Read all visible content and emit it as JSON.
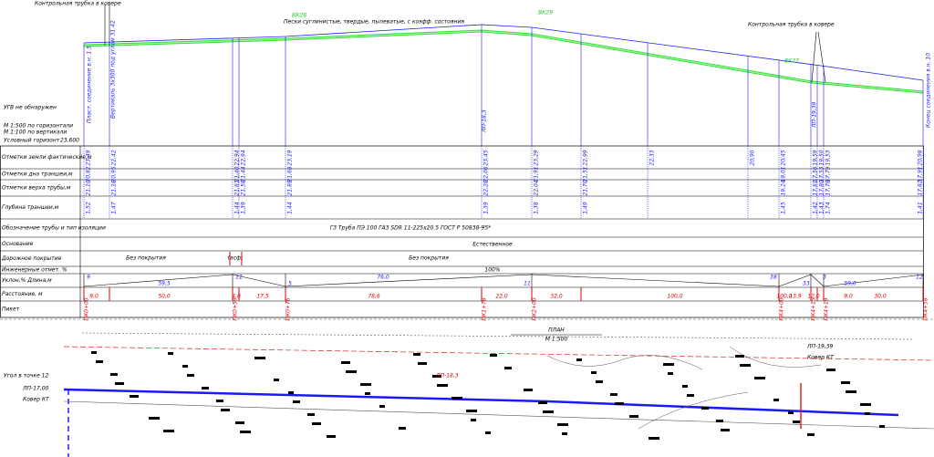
{
  "top_notes": {
    "control_left": "Контрольная трубка в ковере",
    "control_right": "Контрольная трубка в ковере",
    "soil": "Пески суглинистые, твердые, пылеватые, с коэфф. состояния",
    "wells": [
      "ВК28",
      "ВК29",
      "ВК27"
    ]
  },
  "side_notes": [
    "УГВ не обнаружен",
    "М 1:500 по горизонтали",
    "М 1:100 по вертикали",
    "Условный горизонт",
    "23,600"
  ],
  "vertical_labels": [
    "Пласт. соединение в.н. 1.5",
    "Вертикаль 3х300 под углом 31.42",
    "ЛП-18,3",
    "ЛП-19,39",
    "Конец соединения в.н. 10"
  ],
  "row_labels": [
    "Отметки земли фактические,м",
    "Отметки дна траншеи,м",
    "Отметки верха трубы,м",
    "Глубина траншеи,м",
    "Обозначение трубы и тип изоляции",
    "Основание",
    "Дорожное покрытие",
    "Инженерные отмет. %",
    "Уклон,%  Длина,м",
    "Расстояние, м",
    "Пикет"
  ],
  "columns": [
    {
      "ground": "23,49",
      "bottom": "20,82",
      "top": "21,10",
      "depth": "1,52"
    },
    {
      "ground": "22,42",
      "bottom": "20,95",
      "top": "21,18",
      "depth": "1,47"
    },
    {
      "ground": "22,94",
      "bottom": "21,40",
      "top": "21,63",
      "depth": "1,44"
    },
    {
      "ground": "22,94",
      "bottom": "21,44",
      "top": "21,58",
      "depth": "1,39"
    },
    {
      "ground": "23,19",
      "bottom": "21,68",
      "top": "21,89",
      "depth": "1,44"
    },
    {
      "ground": "23,45",
      "bottom": "22,06",
      "top": "22,28",
      "depth": "1,39"
    },
    {
      "ground": "23,29",
      "bottom": "21,91",
      "top": "22,04",
      "depth": "1,38"
    },
    {
      "ground": "22,99",
      "bottom": "21,51",
      "top": "21,70",
      "depth": "1,49"
    },
    {
      "ground": "22,33"
    },
    {
      "ground": "20,90"
    },
    {
      "ground": "20,45",
      "bottom": "19,01",
      "top": "19,24",
      "depth": "1,45"
    },
    {
      "ground": "19,59",
      "bottom": "17,56",
      "top": "17,81",
      "depth": "1,42"
    },
    {
      "ground": "19,50",
      "bottom": "17,53",
      "top": "17,80",
      "depth": "1,43"
    },
    {
      "ground": "19,53",
      "bottom": "17,79",
      "top": "17,78",
      "depth": "1,74"
    },
    {
      "ground": "20,98",
      "bottom": "17,91",
      "top": "17,82",
      "depth": "1,41"
    }
  ],
  "pipe": "ГЗ Труба ПЭ 100 ГАЗ SDR 11-225x20.5 ГОСТ Р 50838-95*",
  "base": "Естественное",
  "road": [
    "Без покрытия",
    "(асф)",
    "Без покрытия"
  ],
  "slope_total": "100%",
  "segments": [
    "9",
    "59,5",
    "12",
    "5",
    "76,0",
    "11",
    "38",
    "33",
    "3",
    "59,0",
    "12"
  ],
  "distances": [
    "9,0",
    "50,0",
    "4,0",
    "17,5",
    "78,6",
    "22,0",
    "32,0",
    "100,0",
    "100,0",
    "13,9",
    "12,0",
    "9,0",
    "30,0"
  ],
  "pickets": [
    "ПК0+00",
    "ПК0+59",
    "ПК0+76",
    "ПК1+78",
    "ПК2+00",
    "ПК4+00",
    "ПК4+15",
    "ПК4+19",
    "ПК4+58"
  ],
  "plan": {
    "title": "ПЛАН",
    "scale": "М 1:500",
    "labels": [
      "ЛП-17,00",
      "Ковер КТ",
      "ЛП-18,3",
      "ЛП-19,39",
      "Ковер КТ",
      "Угол в точке 12"
    ]
  }
}
